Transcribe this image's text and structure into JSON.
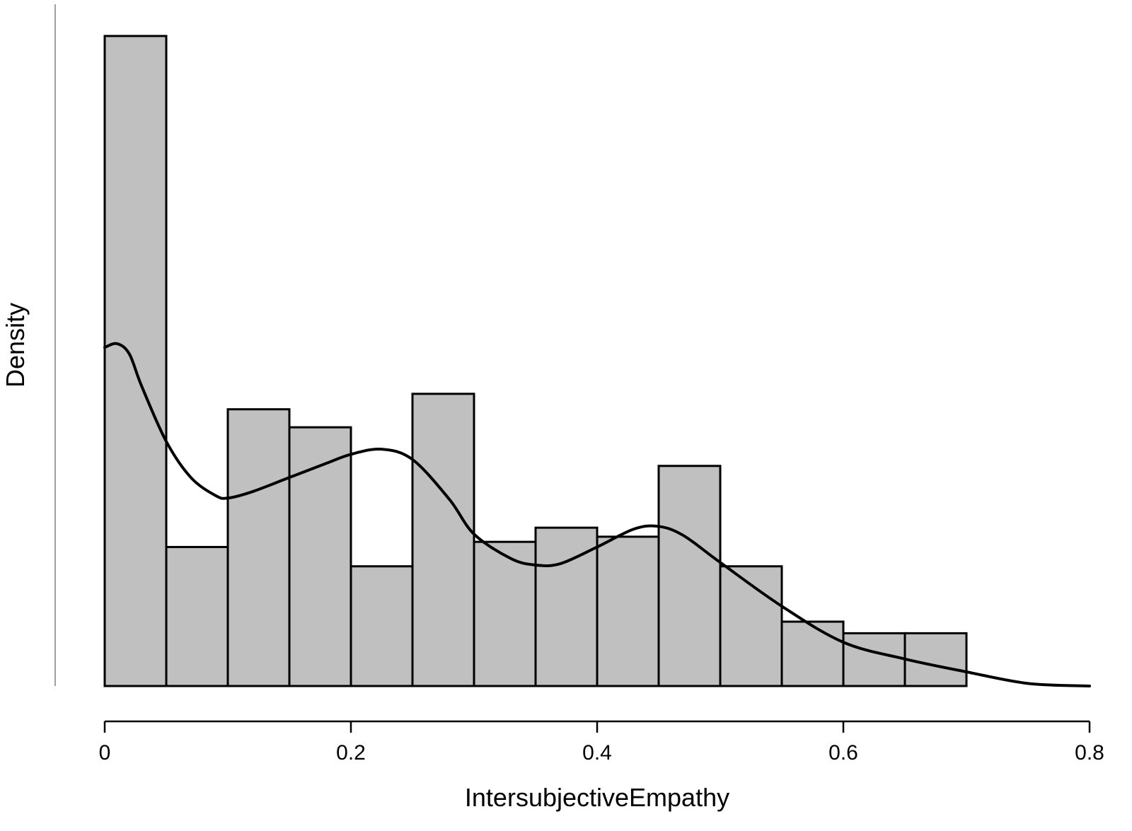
{
  "chart_data": {
    "type": "bar",
    "xlabel": "IntersubjectiveEmpathy",
    "ylabel": "Density",
    "xlim": [
      0,
      0.8
    ],
    "ylim": [
      0,
      5.3
    ],
    "x_ticks": [
      0,
      0.2,
      0.4,
      0.6,
      0.8
    ],
    "x_tick_labels": [
      "0",
      "0.2",
      "0.4",
      "0.6",
      "0.8"
    ],
    "y_ticks_shown": false,
    "bin_width": 0.05,
    "bins": [
      {
        "start": 0.0,
        "end": 0.05,
        "density": 5.05
      },
      {
        "start": 0.05,
        "end": 0.1,
        "density": 1.08
      },
      {
        "start": 0.1,
        "end": 0.15,
        "density": 2.15
      },
      {
        "start": 0.15,
        "end": 0.2,
        "density": 2.01
      },
      {
        "start": 0.2,
        "end": 0.25,
        "density": 0.93
      },
      {
        "start": 0.25,
        "end": 0.3,
        "density": 2.27
      },
      {
        "start": 0.3,
        "end": 0.35,
        "density": 1.12
      },
      {
        "start": 0.35,
        "end": 0.4,
        "density": 1.23
      },
      {
        "start": 0.4,
        "end": 0.45,
        "density": 1.16
      },
      {
        "start": 0.45,
        "end": 0.5,
        "density": 1.71
      },
      {
        "start": 0.5,
        "end": 0.55,
        "density": 0.93
      },
      {
        "start": 0.55,
        "end": 0.6,
        "density": 0.5
      },
      {
        "start": 0.6,
        "end": 0.65,
        "density": 0.41
      },
      {
        "start": 0.65,
        "end": 0.7,
        "density": 0.41
      }
    ],
    "density_curve": {
      "x": [
        0.0,
        0.01,
        0.02,
        0.03,
        0.05,
        0.07,
        0.09,
        0.1,
        0.12,
        0.15,
        0.18,
        0.2,
        0.225,
        0.25,
        0.28,
        0.3,
        0.33,
        0.35,
        0.37,
        0.4,
        0.43,
        0.45,
        0.47,
        0.5,
        0.55,
        0.6,
        0.65,
        0.7,
        0.75,
        0.8
      ],
      "y": [
        2.63,
        2.66,
        2.58,
        2.33,
        1.9,
        1.62,
        1.48,
        1.46,
        1.51,
        1.62,
        1.73,
        1.8,
        1.84,
        1.76,
        1.45,
        1.18,
        0.99,
        0.94,
        0.95,
        1.08,
        1.22,
        1.24,
        1.17,
        0.96,
        0.62,
        0.34,
        0.21,
        0.11,
        0.02,
        0.0
      ]
    }
  }
}
